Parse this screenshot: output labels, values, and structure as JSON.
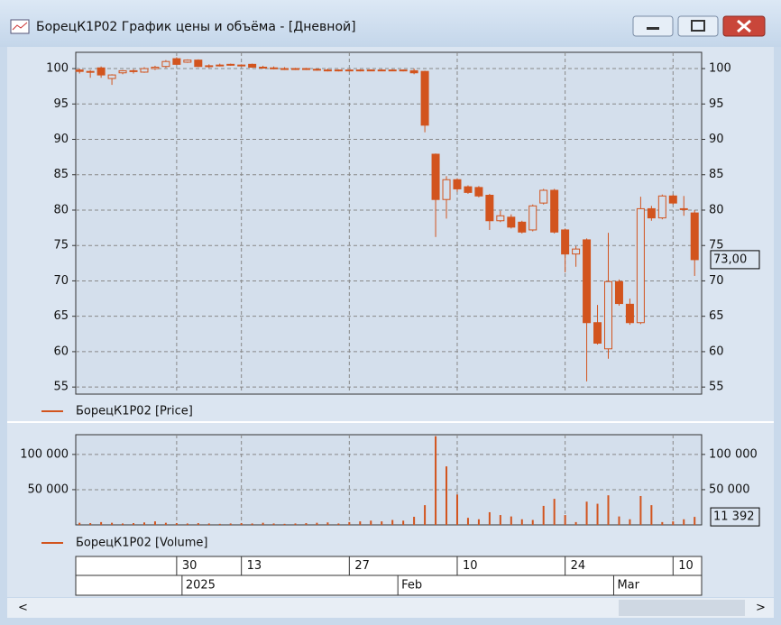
{
  "window": {
    "title": "БорецК1Р02 График цены и объёма - [Дневной]"
  },
  "chart_data": [
    {
      "type": "candlestick",
      "categories": [
        null,
        null,
        null,
        null,
        null,
        null,
        null,
        null,
        null,
        "30",
        null,
        null,
        null,
        null,
        null,
        "13",
        null,
        null,
        null,
        null,
        null,
        null,
        null,
        null,
        null,
        "27",
        null,
        null,
        null,
        null,
        null,
        null,
        null,
        null,
        null,
        "10",
        null,
        null,
        null,
        null,
        null,
        null,
        null,
        null,
        null,
        "24",
        null,
        null,
        null,
        null,
        null,
        null,
        null,
        null,
        null,
        "10",
        null,
        null
      ],
      "period_labels": [
        null,
        null,
        null,
        null,
        null,
        null,
        null,
        null,
        null,
        null,
        "2025",
        null,
        null,
        null,
        null,
        null,
        null,
        null,
        null,
        null,
        null,
        null,
        null,
        null,
        null,
        null,
        null,
        null,
        null,
        null,
        "Feb",
        null,
        null,
        null,
        null,
        null,
        null,
        null,
        null,
        null,
        null,
        null,
        null,
        null,
        null,
        null,
        null,
        null,
        null,
        null,
        "Mar",
        null,
        null,
        null,
        null,
        null,
        null,
        null
      ],
      "series": [
        {
          "name": "БорецК1Р02 [Price]",
          "color": "#d2541e",
          "open": [
            99.8,
            99.6,
            100.1,
            98.6,
            99.4,
            99.6,
            99.5,
            100.0,
            100.3,
            101.4,
            100.9,
            101.2,
            100.3,
            100.5,
            100.5,
            100.4,
            100.6,
            100.2,
            100.1,
            100.0,
            99.9,
            100.0,
            99.9,
            99.8,
            99.7,
            99.8,
            99.7,
            99.8,
            99.8,
            99.8,
            99.8,
            99.7,
            99.6,
            87.9,
            81.5,
            84.3,
            83.3,
            83.2,
            82.1,
            78.5,
            79.0,
            78.3,
            77.2,
            81.0,
            82.8,
            77.2,
            73.8,
            75.8,
            64.1,
            60.4,
            69.9,
            66.7,
            64.1,
            80.2,
            78.9,
            82.0,
            80.1,
            79.6
          ],
          "high": [
            100.0,
            99.8,
            100.3,
            99.2,
            99.8,
            99.9,
            100.2,
            100.4,
            101.2,
            101.6,
            101.3,
            101.3,
            100.6,
            100.7,
            100.7,
            100.6,
            100.7,
            100.4,
            100.3,
            100.2,
            100.1,
            100.1,
            100.0,
            100.0,
            99.9,
            99.9,
            99.9,
            99.9,
            99.9,
            99.9,
            99.9,
            100.0,
            99.7,
            88.0,
            84.8,
            84.5,
            83.5,
            83.4,
            82.3,
            79.9,
            79.4,
            78.5,
            80.8,
            83.0,
            83.0,
            77.4,
            74.9,
            76.0,
            66.6,
            76.8,
            70.2,
            67.5,
            81.9,
            80.6,
            82.2,
            82.2,
            82.0,
            80.0
          ],
          "low": [
            99.3,
            98.7,
            98.7,
            97.7,
            99.2,
            99.3,
            99.4,
            99.8,
            100.1,
            100.5,
            100.8,
            100.2,
            100.1,
            100.3,
            100.4,
            100.3,
            100.1,
            100.0,
            99.9,
            99.8,
            99.8,
            99.8,
            99.7,
            99.6,
            99.6,
            99.6,
            99.6,
            99.7,
            99.7,
            99.7,
            99.6,
            99.2,
            91.0,
            76.2,
            78.8,
            82.6,
            82.3,
            81.8,
            77.2,
            78.3,
            77.4,
            76.7,
            77.0,
            80.8,
            76.7,
            71.2,
            72.0,
            55.8,
            61.0,
            59.0,
            66.5,
            63.8,
            63.9,
            78.5,
            78.7,
            80.8,
            79.2,
            70.7
          ],
          "close": [
            99.6,
            99.5,
            99.1,
            99.1,
            99.7,
            99.7,
            100.0,
            100.2,
            101.0,
            100.6,
            101.2,
            100.3,
            100.4,
            100.5,
            100.6,
            100.5,
            100.2,
            100.1,
            100.0,
            99.9,
            100.0,
            99.9,
            99.8,
            99.7,
            99.8,
            99.7,
            99.8,
            99.8,
            99.8,
            99.8,
            99.7,
            99.4,
            92.0,
            81.5,
            84.3,
            83.0,
            82.5,
            82.0,
            78.5,
            79.2,
            77.6,
            76.9,
            80.6,
            82.8,
            76.9,
            73.8,
            74.5,
            64.1,
            61.2,
            69.9,
            66.8,
            64.1,
            80.2,
            78.9,
            82.0,
            81.0,
            80.2,
            73.0
          ],
          "last_label": "73,00"
        }
      ],
      "ylim": [
        54,
        102.3
      ],
      "yticks": [
        55,
        60,
        65,
        70,
        75,
        80,
        85,
        90,
        95,
        100
      ],
      "grid": true
    },
    {
      "type": "bar",
      "series": [
        {
          "name": "БорецК1Р02 [Volume]",
          "color": "#d2541e",
          "values": [
            3000,
            2500,
            4000,
            3000,
            2000,
            2500,
            3500,
            5000,
            3000,
            2500,
            2000,
            2500,
            2000,
            1500,
            2000,
            2500,
            2000,
            3000,
            2000,
            1500,
            2000,
            2500,
            3000,
            3500,
            2000,
            4000,
            5000,
            6000,
            5000,
            7000,
            6000,
            11500,
            28000,
            126000,
            83000,
            43000,
            10000,
            8000,
            18000,
            14000,
            12000,
            8000,
            7000,
            27000,
            37000,
            14000,
            4000,
            33000,
            30000,
            42000,
            12000,
            8000,
            41000,
            28000,
            4000,
            5000,
            8000,
            11392
          ],
          "last_label": "11 392"
        }
      ],
      "ylim": [
        0,
        128000
      ],
      "yticks": [
        {
          "value": 50000,
          "label": "50 000"
        },
        {
          "value": 100000,
          "label": "100 000"
        }
      ],
      "grid": true
    }
  ]
}
